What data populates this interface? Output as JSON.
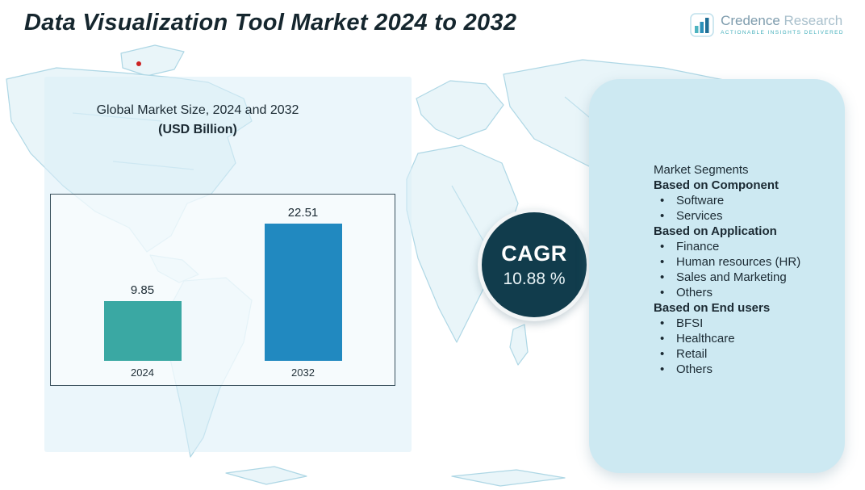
{
  "header": {
    "title": "Data Visualization Tool Market 2024 to 2032",
    "logo": {
      "name_part1": "Credence",
      "name_part2": " Research",
      "tagline": "Actionable Insights Delivered"
    }
  },
  "chart_data": {
    "type": "bar",
    "title": "Global Market Size, 2024 and 2032",
    "subtitle": "(USD Billion)",
    "categories": [
      "2024",
      "2032"
    ],
    "values": [
      9.85,
      22.51
    ],
    "xlabel": "",
    "ylabel": "USD Billion",
    "ylim": [
      0,
      25
    ],
    "grid": false,
    "legend": "none",
    "bar_colors": [
      "#3aa8a3",
      "#2189c0"
    ]
  },
  "cagr": {
    "label": "CAGR",
    "value": "10.88 %"
  },
  "segments": {
    "title": "Market Segments",
    "groups": [
      {
        "heading": "Based on Component",
        "items": [
          "Software",
          "Services"
        ]
      },
      {
        "heading": "Based on Application",
        "items": [
          "Finance",
          "Human resources (HR)",
          "Sales and Marketing",
          "Others"
        ]
      },
      {
        "heading": "Based on End users",
        "items": [
          "BFSI",
          "Healthcare",
          "Retail",
          "Others"
        ]
      }
    ]
  },
  "colors": {
    "title_text": "#15262e",
    "bar_2024": "#3aa8a3",
    "bar_2032": "#2189c0",
    "cagr_circle": "#113c4c",
    "panel_bg": "#cde9f2",
    "map_fill": "#e9f5f9",
    "map_stroke": "#aed7e5",
    "marker_red": "#cc2222"
  }
}
